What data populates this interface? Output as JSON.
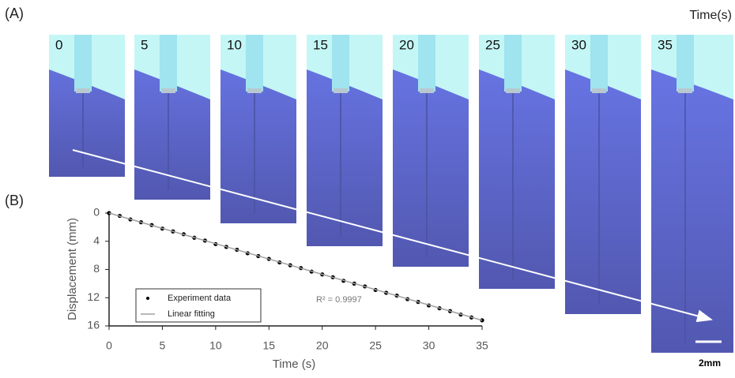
{
  "panel_a": {
    "label": "(A)",
    "axis_label": "Time(s)",
    "frames": [
      0,
      5,
      10,
      15,
      20,
      25,
      30,
      35
    ],
    "scale_bar": "2mm"
  },
  "panel_b": {
    "label": "(B)"
  },
  "chart_data": {
    "type": "scatter",
    "xlabel": "Time (s)",
    "ylabel": "Displacement (mm)",
    "annotation": "R² = 0.9997",
    "xlim": [
      0,
      35
    ],
    "ylim": [
      0,
      16
    ],
    "y_inverted": true,
    "xticks": [
      0,
      5,
      10,
      15,
      20,
      25,
      30,
      35
    ],
    "yticks": [
      0,
      4,
      8,
      12,
      16
    ],
    "series": [
      {
        "name": "Experiment data",
        "color": "#000000",
        "x": [
          0,
          1,
          2,
          3,
          4,
          5,
          6,
          7,
          8,
          9,
          10,
          11,
          12,
          13,
          14,
          15,
          16,
          17,
          18,
          19,
          20,
          21,
          22,
          23,
          24,
          25,
          26,
          27,
          28,
          29,
          30,
          31,
          32,
          33,
          34,
          35
        ],
        "values": [
          0,
          0.4,
          0.9,
          1.3,
          1.7,
          2.2,
          2.6,
          3.0,
          3.5,
          3.9,
          4.4,
          4.8,
          5.2,
          5.7,
          6.1,
          6.5,
          7.0,
          7.4,
          7.8,
          8.3,
          8.7,
          9.1,
          9.6,
          10.0,
          10.4,
          10.9,
          11.3,
          11.7,
          12.2,
          12.6,
          13.1,
          13.5,
          13.9,
          14.4,
          14.8,
          15.2
        ]
      },
      {
        "name": "Linear fitting",
        "color": "#a0a0a0",
        "line": true,
        "x": [
          0,
          35
        ],
        "values": [
          0,
          15.2
        ]
      }
    ]
  }
}
